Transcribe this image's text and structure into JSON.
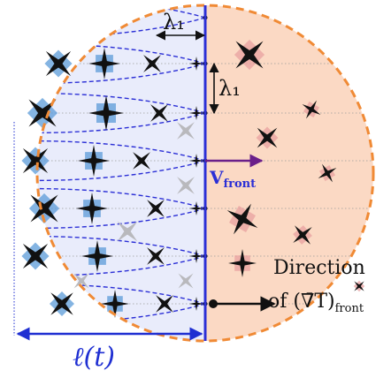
{
  "labels": {
    "lambda_horizontal": "λ₁",
    "lambda_vertical": "λ₁",
    "velocity_main": "V",
    "velocity_sub": "front",
    "direction_line1": "Direction",
    "direction_line2_prefix": "of (",
    "direction_line2_nabla": "∇̄",
    "direction_line2_var": "T)",
    "direction_line2_sub": "front",
    "length_label": "ℓ(t)"
  },
  "colors": {
    "solid_region_fill": "#e9ecfb",
    "liquid_region_fill": "#fbd9c4",
    "circle_outline": "#f08a35",
    "front_line": "#2b2fd6",
    "dendrite_dash": "#2b2fd6",
    "crystal_dark": "#111111",
    "crystal_blue_halo": "#5b9bd8",
    "crystal_pink_halo": "#e8a0a0",
    "ghost_crystal": "#b9b9bd",
    "velocity_arrow": "#6a1f8a",
    "length_arrow": "#1f2fd2"
  }
}
